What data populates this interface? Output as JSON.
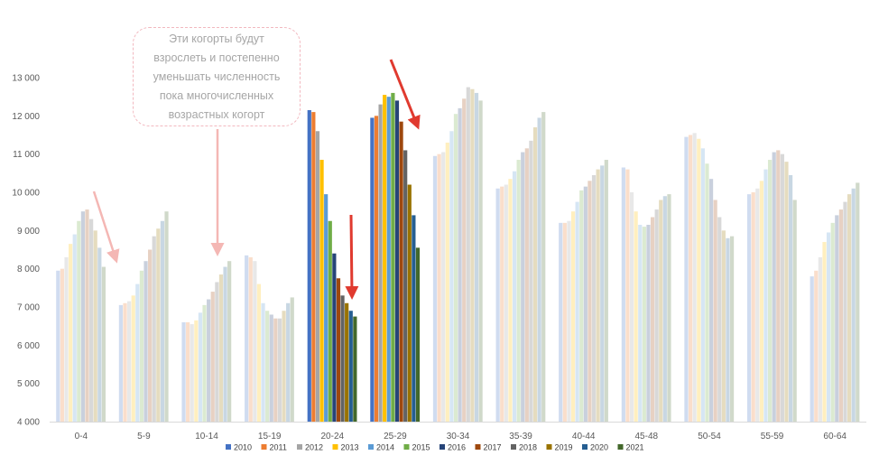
{
  "annotation": {
    "text_lines": [
      "Эти когорты будут",
      "взрослеть и постепенно",
      "уменьшать численность",
      "пока многочисленных",
      "возрастных когорт"
    ]
  },
  "colors": {
    "series": [
      "#4472c4",
      "#ed7d31",
      "#a5a5a5",
      "#ffc000",
      "#5b9bd5",
      "#70ad47",
      "#264478",
      "#9e480e",
      "#636363",
      "#997300",
      "#255e91",
      "#43682b"
    ],
    "faded_arrow": "#f4b7b4",
    "strong_arrow": "#e03a2f",
    "axis": "#d9d9d9"
  },
  "chart_data": {
    "type": "bar",
    "title": "",
    "xlabel": "",
    "ylabel": "",
    "ylim": [
      4000,
      13000
    ],
    "yticks": [
      4000,
      5000,
      6000,
      7000,
      8000,
      9000,
      10000,
      11000,
      12000,
      13000
    ],
    "ytick_labels": [
      "4 000",
      "5 000",
      "6 000",
      "7 000",
      "8 000",
      "9 000",
      "10 000",
      "11 000",
      "12 000",
      "13 000"
    ],
    "grid": false,
    "legend_position": "bottom",
    "categories": [
      "0-4",
      "5-9",
      "10-14",
      "15-19",
      "20-24",
      "25-29",
      "30-34",
      "35-39",
      "40-44",
      "45-48",
      "50-54",
      "55-59",
      "60-64"
    ],
    "highlighted_categories": [
      "20-24",
      "25-29"
    ],
    "series": [
      {
        "name": "2010",
        "values": [
          7950,
          7050,
          6600,
          8350,
          12150,
          11950,
          10950,
          10100,
          9200,
          10650,
          11450,
          9950,
          7800
        ]
      },
      {
        "name": "2011",
        "values": [
          8000,
          7100,
          6600,
          8300,
          12100,
          12000,
          11000,
          10150,
          9200,
          10600,
          11500,
          10000,
          7950
        ]
      },
      {
        "name": "2012",
        "values": [
          8300,
          7150,
          6550,
          8200,
          11600,
          12300,
          11050,
          10200,
          9250,
          10000,
          11550,
          10100,
          8300
        ]
      },
      {
        "name": "2013",
        "values": [
          8650,
          7300,
          6650,
          7600,
          10850,
          12550,
          11300,
          10350,
          9500,
          9500,
          11400,
          10300,
          8700
        ]
      },
      {
        "name": "2014",
        "values": [
          8900,
          7600,
          6850,
          7100,
          9950,
          12500,
          11600,
          10550,
          9750,
          9150,
          11150,
          10600,
          8950
        ]
      },
      {
        "name": "2015",
        "values": [
          9250,
          7950,
          7050,
          6900,
          9250,
          12600,
          12050,
          10850,
          10050,
          9100,
          10750,
          10850,
          9200
        ]
      },
      {
        "name": "2016",
        "values": [
          9500,
          8200,
          7200,
          6800,
          8400,
          12400,
          12200,
          11050,
          10150,
          9150,
          10350,
          11050,
          9400
        ]
      },
      {
        "name": "2017",
        "values": [
          9550,
          8500,
          7400,
          6700,
          7750,
          11850,
          12450,
          11150,
          10300,
          9350,
          9800,
          11100,
          9550
        ]
      },
      {
        "name": "2018",
        "values": [
          9300,
          8850,
          7650,
          6700,
          7300,
          11100,
          12750,
          11350,
          10450,
          9550,
          9350,
          11000,
          9750
        ]
      },
      {
        "name": "2019",
        "values": [
          9000,
          9050,
          7850,
          6900,
          7100,
          10200,
          12700,
          11700,
          10600,
          9800,
          9000,
          10800,
          9950
        ]
      },
      {
        "name": "2020",
        "values": [
          8550,
          9250,
          8050,
          7100,
          6900,
          9400,
          12600,
          11950,
          10700,
          9900,
          8800,
          10450,
          10100
        ]
      },
      {
        "name": "2021",
        "values": [
          8050,
          9500,
          8200,
          7250,
          6750,
          8550,
          12400,
          12100,
          10850,
          9950,
          8850,
          9800,
          10250
        ]
      }
    ]
  }
}
